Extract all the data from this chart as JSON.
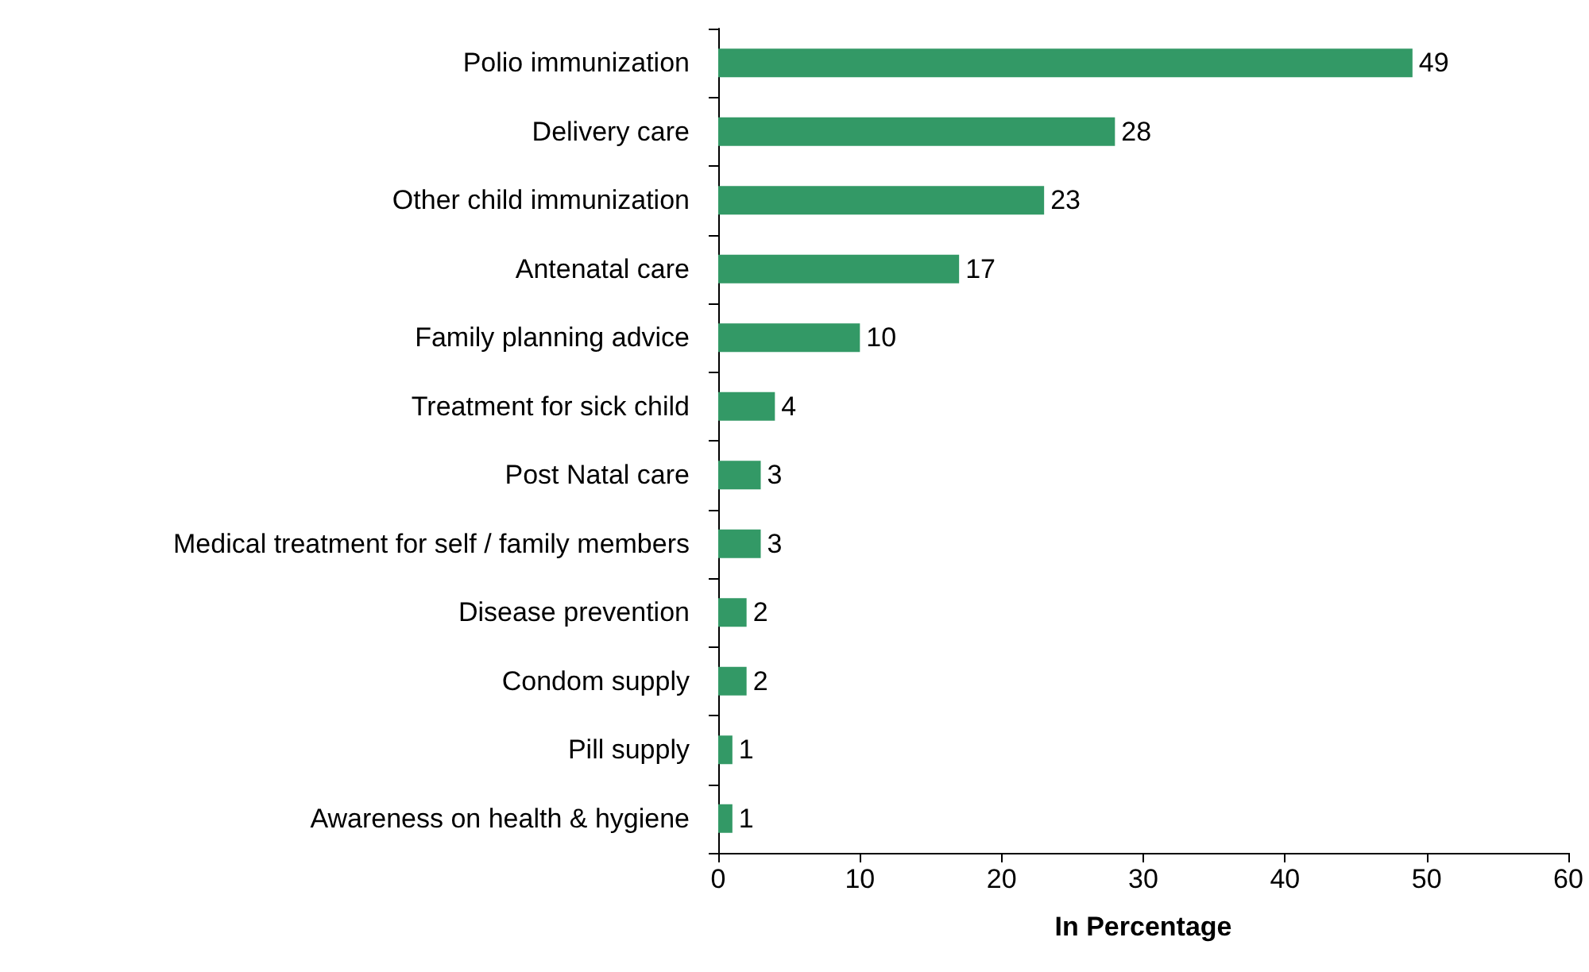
{
  "chart_data": {
    "type": "bar",
    "orientation": "horizontal",
    "xlabel": "In Percentage",
    "categories": [
      "Polio immunization",
      "Delivery care",
      "Other child immunization",
      "Antenatal care",
      "Family planning advice",
      "Treatment for sick child",
      "Post Natal care",
      "Medical treatment for self / family members",
      "Disease prevention",
      "Condom supply",
      "Pill supply",
      "Awareness on health & hygiene"
    ],
    "values": [
      49,
      28,
      23,
      17,
      10,
      4,
      3,
      3,
      2,
      2,
      1,
      1
    ],
    "color": "#339966",
    "data_labels": true,
    "grid": false,
    "xlim": [
      0,
      60
    ],
    "xticks": [
      0,
      10,
      20,
      30,
      40,
      50,
      60
    ]
  }
}
